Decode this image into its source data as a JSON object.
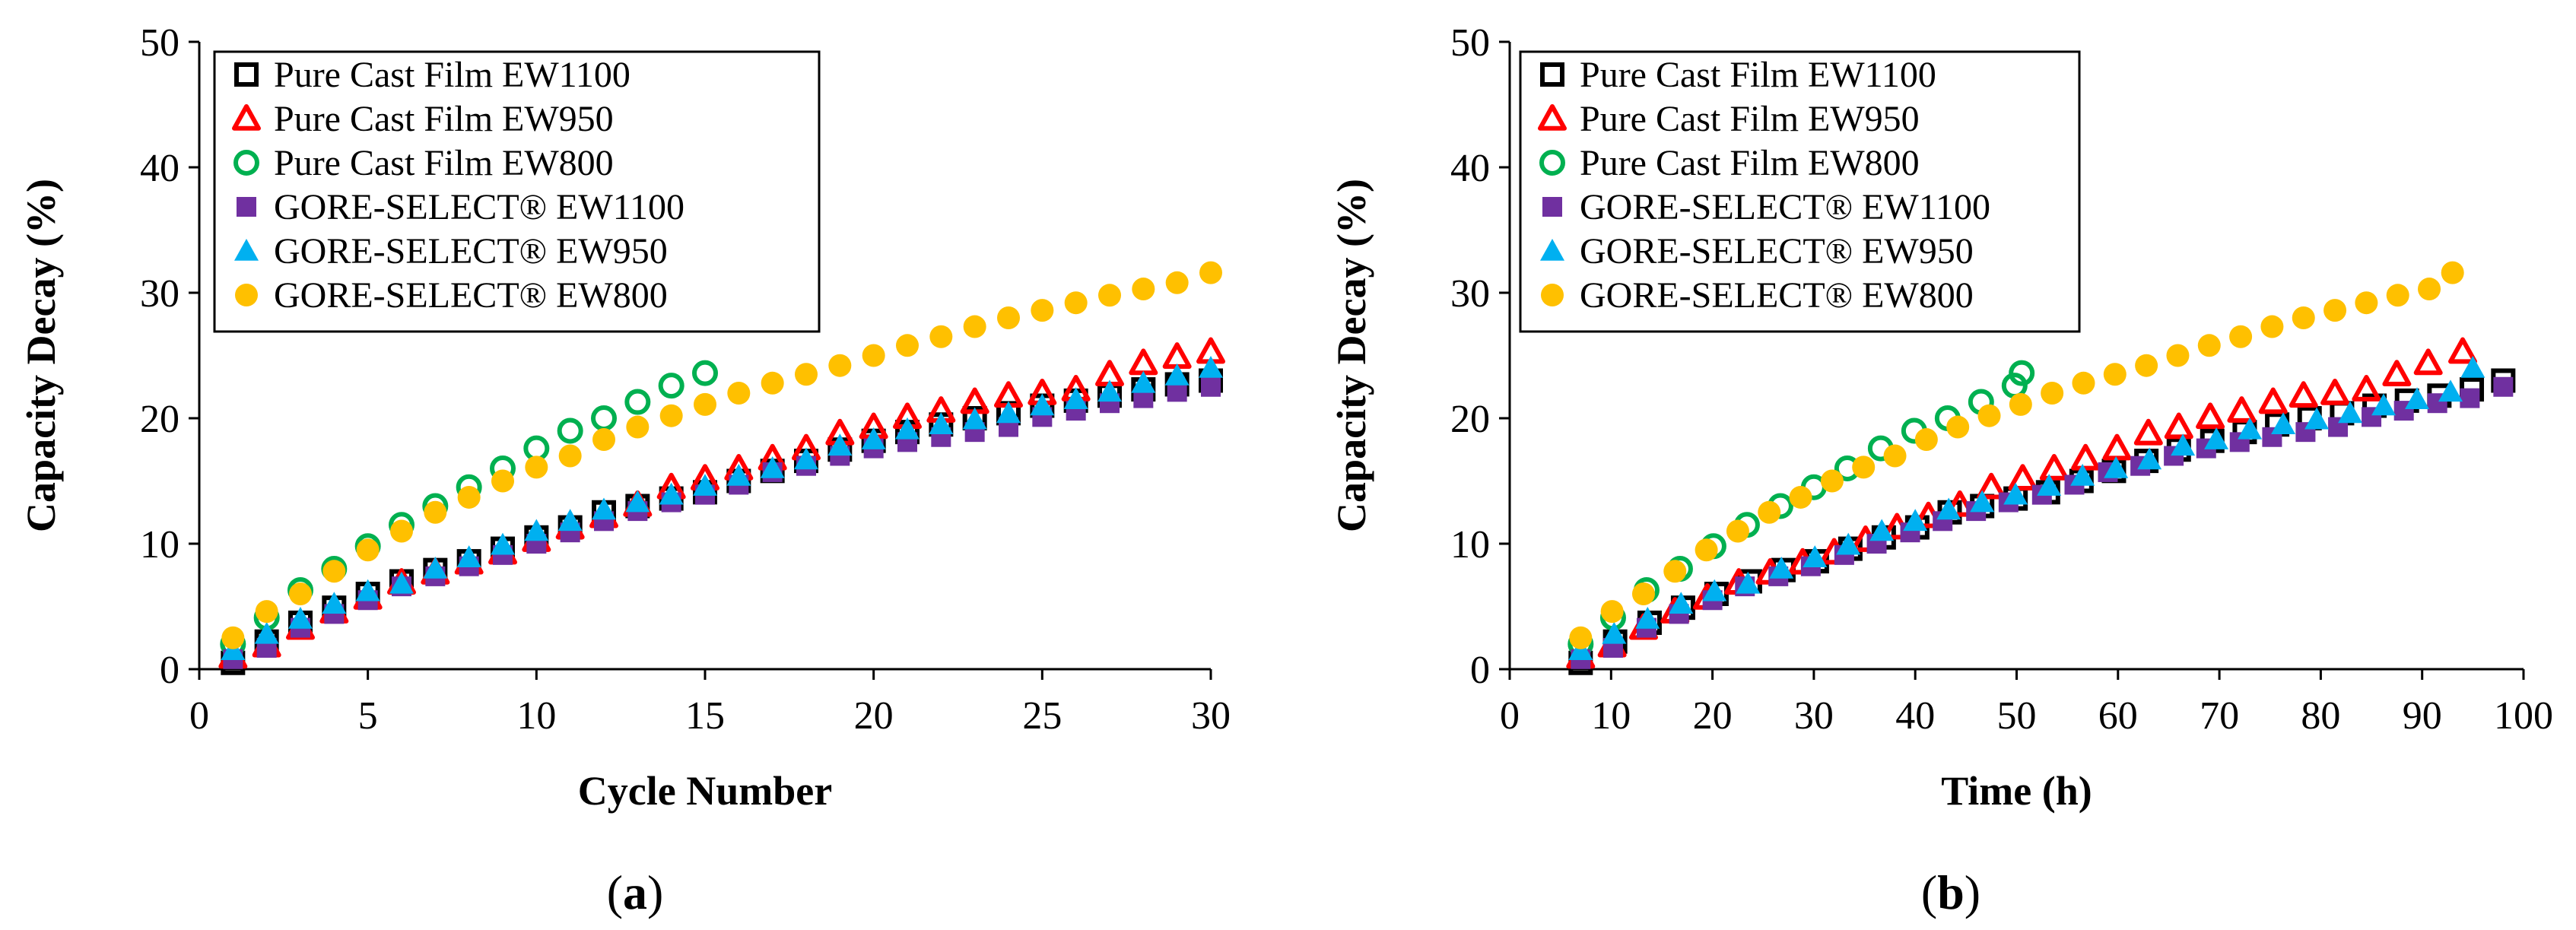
{
  "chart_data": [
    {
      "type": "scatter",
      "panel": "(a)",
      "panel_letter": "a",
      "xlabel": "Cycle Number",
      "ylabel": "Capacity Decay (%)",
      "xlim": [
        0,
        30
      ],
      "ylim": [
        0,
        50
      ],
      "xticks": [
        0,
        5,
        10,
        15,
        20,
        25,
        30
      ],
      "yticks": [
        0,
        10,
        20,
        30,
        40,
        50
      ],
      "grid": false,
      "legend_position": "top-left",
      "series": [
        {
          "name": "Pure Cast Film EW1100",
          "marker": "square-open",
          "color": "#000000",
          "x": [
            1,
            2,
            3,
            4,
            5,
            6,
            7,
            8,
            9,
            10,
            11,
            12,
            13,
            14,
            15,
            16,
            17,
            18,
            19,
            20,
            21,
            22,
            23,
            24,
            25,
            26,
            27,
            28,
            29,
            30
          ],
          "y": [
            0.5,
            2.2,
            3.7,
            4.9,
            6.0,
            7.0,
            7.9,
            8.6,
            9.6,
            10.5,
            11.3,
            12.5,
            13.0,
            13.6,
            14.1,
            15.0,
            15.8,
            16.6,
            17.5,
            18.2,
            18.9,
            19.5,
            20.0,
            20.4,
            21.0,
            21.4,
            21.8,
            22.3,
            22.7,
            23.0
          ]
        },
        {
          "name": "Pure Cast Film EW950",
          "marker": "triangle-open",
          "color": "#ff0000",
          "x": [
            1,
            2,
            3,
            4,
            5,
            6,
            7,
            8,
            9,
            10,
            11,
            12,
            13,
            14,
            15,
            16,
            17,
            18,
            19,
            20,
            21,
            22,
            23,
            24,
            25,
            26,
            27,
            28,
            29,
            30
          ],
          "y": [
            1.0,
            1.9,
            3.3,
            4.6,
            5.7,
            6.9,
            7.7,
            8.5,
            9.3,
            10.3,
            11.3,
            12.2,
            13.1,
            14.5,
            15.2,
            16.0,
            16.8,
            17.6,
            18.8,
            19.3,
            20.1,
            20.6,
            21.3,
            21.8,
            22.0,
            22.3,
            23.5,
            24.4,
            24.9,
            25.3
          ]
        },
        {
          "name": "Pure Cast Film EW800",
          "marker": "circle-open",
          "color": "#00b050",
          "x": [
            1,
            2,
            3,
            4,
            5,
            6,
            7,
            8,
            9,
            10,
            11,
            12,
            13,
            14,
            15
          ],
          "y": [
            2.0,
            4.1,
            6.3,
            8.0,
            9.8,
            11.5,
            13.0,
            14.5,
            16.0,
            17.6,
            19.0,
            20.0,
            21.3,
            22.6,
            23.6
          ]
        },
        {
          "name": "GORE-SELECT® EW1100",
          "marker": "square-filled",
          "color": "#7030a0",
          "x": [
            1,
            2,
            3,
            4,
            5,
            6,
            7,
            8,
            9,
            10,
            11,
            12,
            13,
            14,
            15,
            16,
            17,
            18,
            19,
            20,
            21,
            22,
            23,
            24,
            25,
            26,
            27,
            28,
            29,
            30
          ],
          "y": [
            0.8,
            1.7,
            3.3,
            4.4,
            5.5,
            6.6,
            7.4,
            8.2,
            9.1,
            10.0,
            10.9,
            11.8,
            12.6,
            13.3,
            13.9,
            14.7,
            15.7,
            16.2,
            17.0,
            17.6,
            18.1,
            18.5,
            18.9,
            19.3,
            20.1,
            20.6,
            21.2,
            21.6,
            22.1,
            22.5
          ]
        },
        {
          "name": "GORE-SELECT® EW950",
          "marker": "triangle-filled",
          "color": "#00b0f0",
          "x": [
            1,
            2,
            3,
            4,
            5,
            6,
            7,
            8,
            9,
            10,
            11,
            12,
            13,
            14,
            15,
            16,
            17,
            18,
            19,
            20,
            21,
            22,
            23,
            24,
            25,
            26,
            27,
            28,
            29,
            30
          ],
          "y": [
            1.5,
            2.8,
            4.0,
            5.2,
            6.2,
            6.8,
            8.0,
            8.9,
            9.9,
            11.0,
            11.8,
            12.7,
            13.3,
            13.9,
            14.6,
            15.4,
            16.0,
            16.7,
            17.8,
            18.3,
            19.1,
            19.5,
            19.9,
            20.4,
            21.0,
            21.5,
            22.1,
            22.8,
            23.4,
            24.0
          ]
        },
        {
          "name": "GORE-SELECT® EW800",
          "marker": "circle-filled",
          "color": "#ffc000",
          "x": [
            1,
            2,
            3,
            4,
            5,
            6,
            7,
            8,
            9,
            10,
            11,
            12,
            13,
            14,
            15,
            16,
            17,
            18,
            19,
            20,
            21,
            22,
            23,
            24,
            25,
            26,
            27,
            28,
            29,
            30
          ],
          "y": [
            2.5,
            4.6,
            6.0,
            7.8,
            9.5,
            11.0,
            12.5,
            13.7,
            15.0,
            16.1,
            17.0,
            18.3,
            19.3,
            20.2,
            21.1,
            22.0,
            22.8,
            23.5,
            24.2,
            25.0,
            25.8,
            26.5,
            27.3,
            28.0,
            28.6,
            29.2,
            29.8,
            30.3,
            30.8,
            31.6
          ]
        }
      ]
    },
    {
      "type": "scatter",
      "panel": "(b)",
      "panel_letter": "b",
      "xlabel": "Time (h)",
      "ylabel": "Capacity Decay (%)",
      "xlim": [
        0,
        100
      ],
      "ylim": [
        0,
        50
      ],
      "xticks": [
        0,
        10,
        20,
        30,
        40,
        50,
        60,
        70,
        80,
        90,
        100
      ],
      "yticks": [
        0,
        10,
        20,
        30,
        40,
        50
      ],
      "grid": false,
      "legend_position": "top-left",
      "series": [
        {
          "name": "Pure Cast Film EW1100",
          "marker": "square-open",
          "color": "#000000",
          "x": [
            7,
            10.4,
            13.8,
            17.1,
            20.4,
            23.7,
            27.0,
            30.3,
            33.6,
            36.9,
            40.2,
            43.4,
            46.6,
            49.9,
            53.1,
            56.4,
            59.6,
            62.8,
            66.0,
            69.3,
            72.5,
            75.7,
            78.9,
            82.1,
            85.3,
            88.5,
            91.7,
            94.9,
            98.0
          ],
          "y": [
            0.5,
            2.2,
            3.7,
            4.9,
            6.0,
            7.0,
            7.9,
            8.6,
            9.6,
            10.5,
            11.3,
            12.5,
            13.0,
            13.6,
            14.1,
            15.0,
            15.8,
            16.6,
            17.5,
            18.2,
            18.9,
            19.5,
            20.0,
            20.4,
            21.0,
            21.4,
            21.8,
            22.3,
            23.0
          ]
        },
        {
          "name": "Pure Cast Film EW950",
          "marker": "triangle-open",
          "color": "#ff0000",
          "x": [
            7,
            10.1,
            13.2,
            16.3,
            19.5,
            22.6,
            25.7,
            28.9,
            32.0,
            35.1,
            38.2,
            41.3,
            44.4,
            47.5,
            50.6,
            53.7,
            56.8,
            59.9,
            63.0,
            66.0,
            69.1,
            72.2,
            75.3,
            78.3,
            81.4,
            84.5,
            87.5,
            90.6,
            94.0
          ],
          "y": [
            1.0,
            1.9,
            3.3,
            4.6,
            5.7,
            6.9,
            7.7,
            8.5,
            9.3,
            10.3,
            11.3,
            12.2,
            13.1,
            14.5,
            15.2,
            16.0,
            16.8,
            17.6,
            18.8,
            19.3,
            20.1,
            20.6,
            21.3,
            21.8,
            22.0,
            22.3,
            23.5,
            24.4,
            25.3
          ]
        },
        {
          "name": "Pure Cast Film EW800",
          "marker": "circle-open",
          "color": "#00b050",
          "x": [
            7,
            10.2,
            13.5,
            16.8,
            20.1,
            23.4,
            26.7,
            30.0,
            33.3,
            36.6,
            39.9,
            43.2,
            46.5,
            49.8,
            50.5
          ],
          "y": [
            2.0,
            4.1,
            6.3,
            8.0,
            9.8,
            11.5,
            13.0,
            14.5,
            16.0,
            17.6,
            19.0,
            20.0,
            21.3,
            22.6,
            23.6
          ]
        },
        {
          "name": "GORE-SELECT® EW1100",
          "marker": "square-filled",
          "color": "#7030a0",
          "x": [
            7,
            10.2,
            13.5,
            16.7,
            20.0,
            23.2,
            26.5,
            29.7,
            33.0,
            36.2,
            39.5,
            42.7,
            46.0,
            49.2,
            52.5,
            55.7,
            59.0,
            62.2,
            65.5,
            68.7,
            72.0,
            75.2,
            78.5,
            81.7,
            85.0,
            88.2,
            91.5,
            94.7,
            98.0
          ],
          "y": [
            0.8,
            1.7,
            3.3,
            4.4,
            5.5,
            6.6,
            7.4,
            8.2,
            9.1,
            10.0,
            10.9,
            11.8,
            12.6,
            13.3,
            13.9,
            14.7,
            15.7,
            16.2,
            17.0,
            17.6,
            18.1,
            18.5,
            18.9,
            19.3,
            20.1,
            20.6,
            21.2,
            21.6,
            22.5
          ]
        },
        {
          "name": "GORE-SELECT® EW950",
          "marker": "triangle-filled",
          "color": "#00b0f0",
          "x": [
            7,
            10.3,
            13.6,
            16.9,
            20.2,
            23.5,
            26.8,
            30.1,
            33.4,
            36.7,
            40.0,
            43.3,
            46.6,
            49.9,
            53.2,
            56.5,
            59.8,
            63.1,
            66.4,
            69.7,
            73.0,
            76.3,
            79.6,
            82.9,
            86.2,
            89.5,
            92.8,
            95.0
          ],
          "y": [
            1.5,
            2.8,
            4.0,
            5.2,
            6.2,
            6.8,
            8.0,
            8.9,
            9.9,
            11.0,
            11.8,
            12.7,
            13.3,
            13.9,
            14.6,
            15.4,
            16.0,
            16.7,
            17.8,
            18.3,
            19.1,
            19.5,
            19.9,
            20.4,
            21.0,
            21.5,
            22.1,
            24.0
          ]
        },
        {
          "name": "GORE-SELECT® EW800",
          "marker": "circle-filled",
          "color": "#ffc000",
          "x": [
            7,
            10.1,
            13.2,
            16.3,
            19.4,
            22.5,
            25.6,
            28.7,
            31.8,
            34.9,
            38.0,
            41.1,
            44.2,
            47.3,
            50.4,
            53.5,
            56.6,
            59.7,
            62.8,
            65.9,
            69.0,
            72.1,
            75.2,
            78.3,
            81.4,
            84.5,
            87.6,
            90.7,
            93.0
          ],
          "y": [
            2.5,
            4.6,
            6.0,
            7.8,
            9.5,
            11.0,
            12.5,
            13.7,
            15.0,
            16.1,
            17.0,
            18.3,
            19.3,
            20.2,
            21.1,
            22.0,
            22.8,
            23.5,
            24.2,
            25.0,
            25.8,
            26.5,
            27.3,
            28.0,
            28.6,
            29.2,
            29.8,
            30.3,
            31.6
          ]
        }
      ]
    }
  ]
}
